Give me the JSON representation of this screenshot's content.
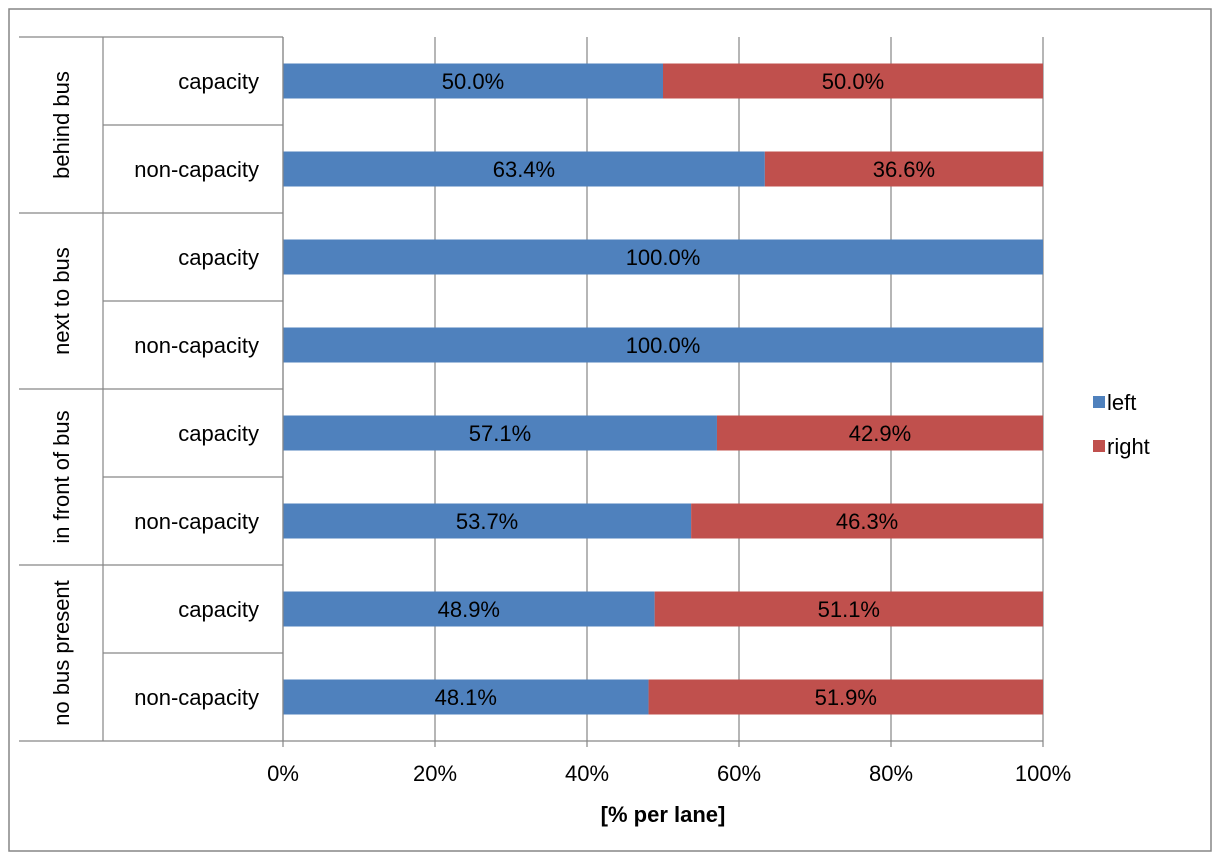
{
  "chart_data": {
    "type": "bar",
    "orientation": "horizontal",
    "stacked": "100%",
    "groups": [
      {
        "label": "behind bus",
        "categories": [
          "capacity",
          "non-capacity"
        ]
      },
      {
        "label": "next to bus",
        "categories": [
          "capacity",
          "non-capacity"
        ]
      },
      {
        "label": "in front of bus",
        "categories": [
          "capacity",
          "non-capacity"
        ]
      },
      {
        "label": "no bus present",
        "categories": [
          "capacity",
          "non-capacity"
        ]
      }
    ],
    "series": [
      {
        "name": "left",
        "color": "#4F81BD",
        "values": [
          50.0,
          63.4,
          100.0,
          100.0,
          57.1,
          53.7,
          48.9,
          48.1
        ]
      },
      {
        "name": "right",
        "color": "#C0504D",
        "values": [
          50.0,
          36.6,
          0,
          0,
          42.9,
          46.3,
          51.1,
          51.9
        ]
      }
    ],
    "data_labels": {
      "left": [
        "50.0%",
        "63.4%",
        "100.0%",
        "100.0%",
        "57.1%",
        "53.7%",
        "48.9%",
        "48.1%"
      ],
      "right": [
        "50.0%",
        "36.6%",
        "",
        "",
        "42.9%",
        "46.3%",
        "51.1%",
        "51.9%"
      ]
    },
    "xticks": [
      "0%",
      "20%",
      "40%",
      "60%",
      "80%",
      "100%"
    ],
    "xlim": [
      0,
      100
    ],
    "xlabel": "[% per lane]",
    "grid": "vertical",
    "legend_position": "right"
  }
}
